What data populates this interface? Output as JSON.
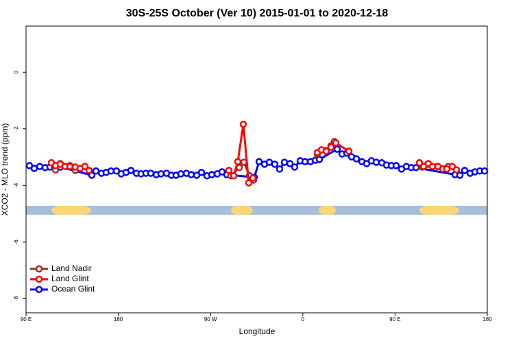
{
  "chart_data": {
    "type": "line",
    "title": "30S-25S October (Ver 10)   2015-01-01 to 2020-12-18",
    "x_label": "Longitude",
    "y_label": "XCO2 - MLO trend (ppm)",
    "xlim": [
      90,
      540
    ],
    "xticks": [
      {
        "value": 90,
        "label": "90 E"
      },
      {
        "value": 180,
        "label": "180"
      },
      {
        "value": 270,
        "label": "90 W"
      },
      {
        "value": 360,
        "label": "0"
      },
      {
        "value": 450,
        "label": "90 E"
      },
      {
        "value": 540,
        "label": "180"
      }
    ],
    "ylim": [
      -8.5,
      1.63
    ],
    "yticks": [
      0,
      -2,
      -4,
      -6,
      -8
    ],
    "legend": "bottomleft",
    "series": [
      {
        "name": "Ocean Glint",
        "color": "#0000ff",
        "x": [
          93.3,
          98.0,
          103.4,
          108.7,
          113.4,
          118.1,
          123.5,
          154.2,
          158.2,
          163.6,
          168.2,
          172.9,
          178.2,
          182.9,
          187.6,
          192.3,
          197.7,
          202.3,
          207.0,
          211.7,
          217.1,
          221.7,
          227.1,
          231.8,
          236.4,
          241.1,
          246.5,
          251.2,
          256.5,
          261.2,
          266.5,
          271.2,
          276.6,
          281.2,
          285.9,
          312.7,
          317.4,
          322.7,
          327.4,
          332.7,
          337.4,
          342.1,
          347.5,
          352.1,
          357.5,
          362.2,
          367.5,
          372.2,
          376.2,
          393.6,
          398.3,
          403.0,
          407.6,
          412.3,
          417.7,
          422.3,
          427.0,
          431.7,
          437.1,
          441.7,
          446.4,
          451.1,
          456.4,
          461.1,
          465.8,
          470.5,
          508.6,
          513.3,
          518.0,
          523.3,
          528.0,
          532.7,
          537.4
        ],
        "values": [
          -3.3,
          -3.4,
          -3.33,
          -3.37,
          -3.35,
          -3.35,
          -3.35,
          -3.64,
          -3.49,
          -3.57,
          -3.54,
          -3.49,
          -3.49,
          -3.59,
          -3.54,
          -3.47,
          -3.57,
          -3.59,
          -3.57,
          -3.57,
          -3.62,
          -3.59,
          -3.57,
          -3.64,
          -3.64,
          -3.59,
          -3.57,
          -3.62,
          -3.64,
          -3.54,
          -3.66,
          -3.62,
          -3.59,
          -3.52,
          -3.62,
          -3.71,
          -3.16,
          -3.25,
          -3.18,
          -3.25,
          -3.42,
          -3.18,
          -3.23,
          -3.35,
          -3.13,
          -3.16,
          -3.16,
          -3.11,
          -3.08,
          -2.72,
          -2.89,
          -2.86,
          -2.99,
          -3.06,
          -3.16,
          -3.23,
          -3.13,
          -3.18,
          -3.2,
          -3.28,
          -3.3,
          -3.3,
          -3.42,
          -3.33,
          -3.37,
          -3.37,
          -3.62,
          -3.64,
          -3.47,
          -3.57,
          -3.52,
          -3.49,
          -3.49
        ]
      },
      {
        "name": "Land Nadir",
        "color": "#a52a2a",
        "x": [
          118.8,
          123.4,
          132.8,
          138.1,
          null,
          289.9,
          298.0,
          302.6,
          308.0,
          312.0,
          null,
          374.2,
          382.9,
          387.6,
          390.9,
          null,
          476.5,
          481.9,
          491.3,
          502.0
        ],
        "values": [
          -3.45,
          -3.23,
          -3.3,
          -3.47,
          null,
          -3.66,
          -3.37,
          -3.18,
          -3.66,
          -3.81,
          null,
          -2.89,
          -2.77,
          -2.6,
          -2.45,
          null,
          -3.35,
          -3.25,
          -3.33,
          -3.33
        ]
      },
      {
        "name": "Land Glint",
        "color": "#ff0000",
        "x": [
          114.7,
          118.8,
          123.4,
          128.1,
          132.8,
          138.1,
          142.8,
          147.5,
          151.5,
          null,
          287.9,
          292.6,
          296.6,
          302.0,
          307.3,
          311.3,
          null,
          374.2,
          378.2,
          382.9,
          387.6,
          392.3,
          405.0,
          null,
          473.8,
          477.9,
          482.5,
          486.5,
          491.9,
          496.6,
          500.6,
          505.9,
          509.9
        ],
        "values": [
          -3.2,
          -3.3,
          -3.25,
          -3.33,
          -3.33,
          -3.35,
          -3.4,
          -3.33,
          -3.47,
          null,
          -3.47,
          -3.66,
          -3.16,
          -1.84,
          -3.91,
          -3.74,
          null,
          -2.84,
          -2.74,
          -2.79,
          -2.65,
          -2.5,
          -2.79,
          null,
          -3.2,
          -3.33,
          -3.23,
          -3.33,
          -3.33,
          -3.42,
          -3.42,
          -3.33,
          -3.45
        ]
      }
    ]
  }
}
